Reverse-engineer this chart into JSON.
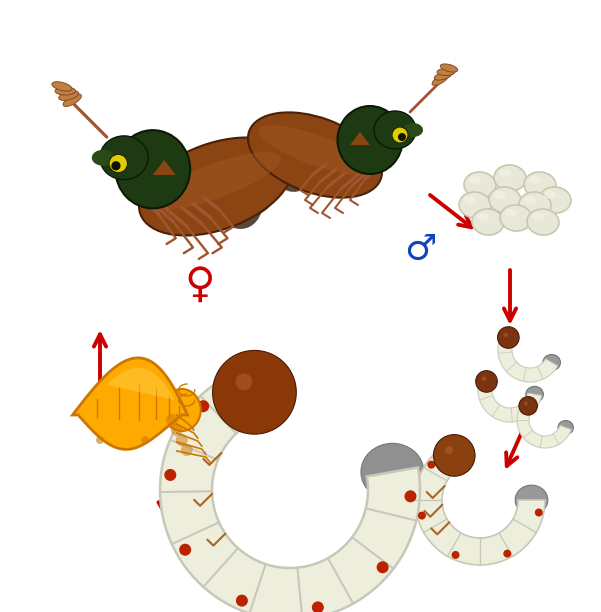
{
  "background": "#ffffff",
  "arrow_color": "#cc0000",
  "female_symbol_color": "#cc0000",
  "male_symbol_color": "#1144bb",
  "egg_color": "#e8e8d8",
  "egg_outline": "#c8c8b0",
  "larva_body_color": "#eeeedd",
  "larva_segment_color": "#c8c8b8",
  "larva_head_color": "#7a3510",
  "larva_tail_color": "#aaaaaa",
  "larva_leg_color": "#aa6622",
  "larva_dot_color": "#bb2200",
  "pupa_main": "#ffaa00",
  "pupa_dark": "#cc7700",
  "pupa_mid": "#ffcc44",
  "beetle_elytra_brown": "#8B4513",
  "beetle_elytra_dark": "#3d2008",
  "beetle_thorax": "#1a3a0a",
  "beetle_head": "#1a3a0a",
  "beetle_legs": "#a05530",
  "beetle_eye": "#111100",
  "fig_width": 6.01,
  "fig_height": 6.12,
  "dpi": 100
}
